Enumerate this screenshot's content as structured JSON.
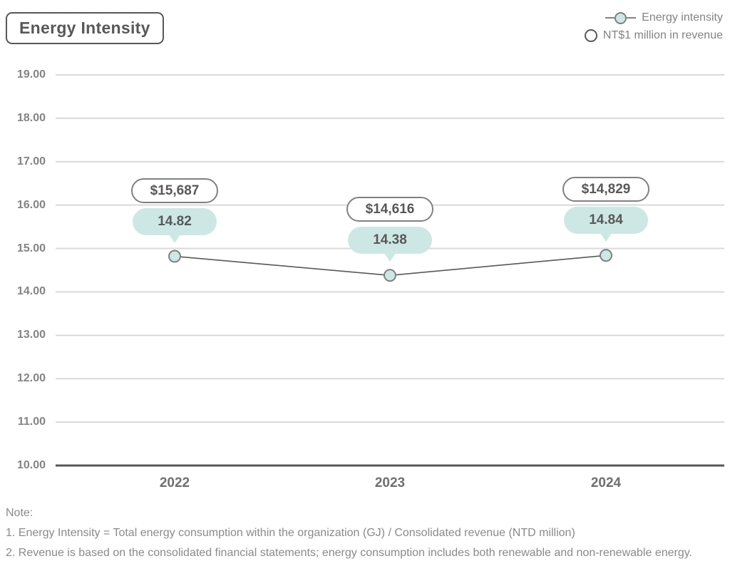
{
  "title": "Energy Intensity",
  "legend": {
    "items": [
      {
        "label": "Energy intensity",
        "marker": "line-dot",
        "marker_color": "#cde8e4"
      },
      {
        "label": "NT$1 million in revenue",
        "marker": "dot",
        "marker_color": "#ffffff"
      }
    ]
  },
  "chart_data": {
    "type": "line",
    "categories": [
      "2022",
      "2023",
      "2024"
    ],
    "series": [
      {
        "name": "Energy intensity",
        "values": [
          14.82,
          14.38,
          14.84
        ],
        "point_labels": [
          "14.82",
          "14.38",
          "14.84"
        ],
        "marker_fill": "#cde8e4"
      },
      {
        "name": "NT$1 million in revenue",
        "values": [
          15687,
          14616,
          14829
        ],
        "point_labels": [
          "$15,687",
          "$14,616",
          "$14,829"
        ],
        "marker_fill": "#ffffff"
      }
    ],
    "ylim": [
      10,
      19
    ],
    "yticks": [
      "19.00",
      "18.00",
      "17.00",
      "16.00",
      "15.00",
      "14.00",
      "13.00",
      "12.00",
      "11.00",
      "10.00"
    ],
    "grid": true,
    "legend_position": "top-right"
  },
  "notes": {
    "heading": "Note:",
    "items": [
      "1. Energy Intensity = Total energy consumption within the organization (GJ) / Consolidated revenue (NTD million)",
      "2. Revenue is based on the consolidated financial statements; energy consumption includes both renewable and non-renewable energy."
    ]
  },
  "colors": {
    "accent_teal": "#cde8e4",
    "dark_gray": "#595757",
    "text_gray": "#848484",
    "gridline": "#d9d9d9",
    "marker_stroke": "#7f8080"
  }
}
